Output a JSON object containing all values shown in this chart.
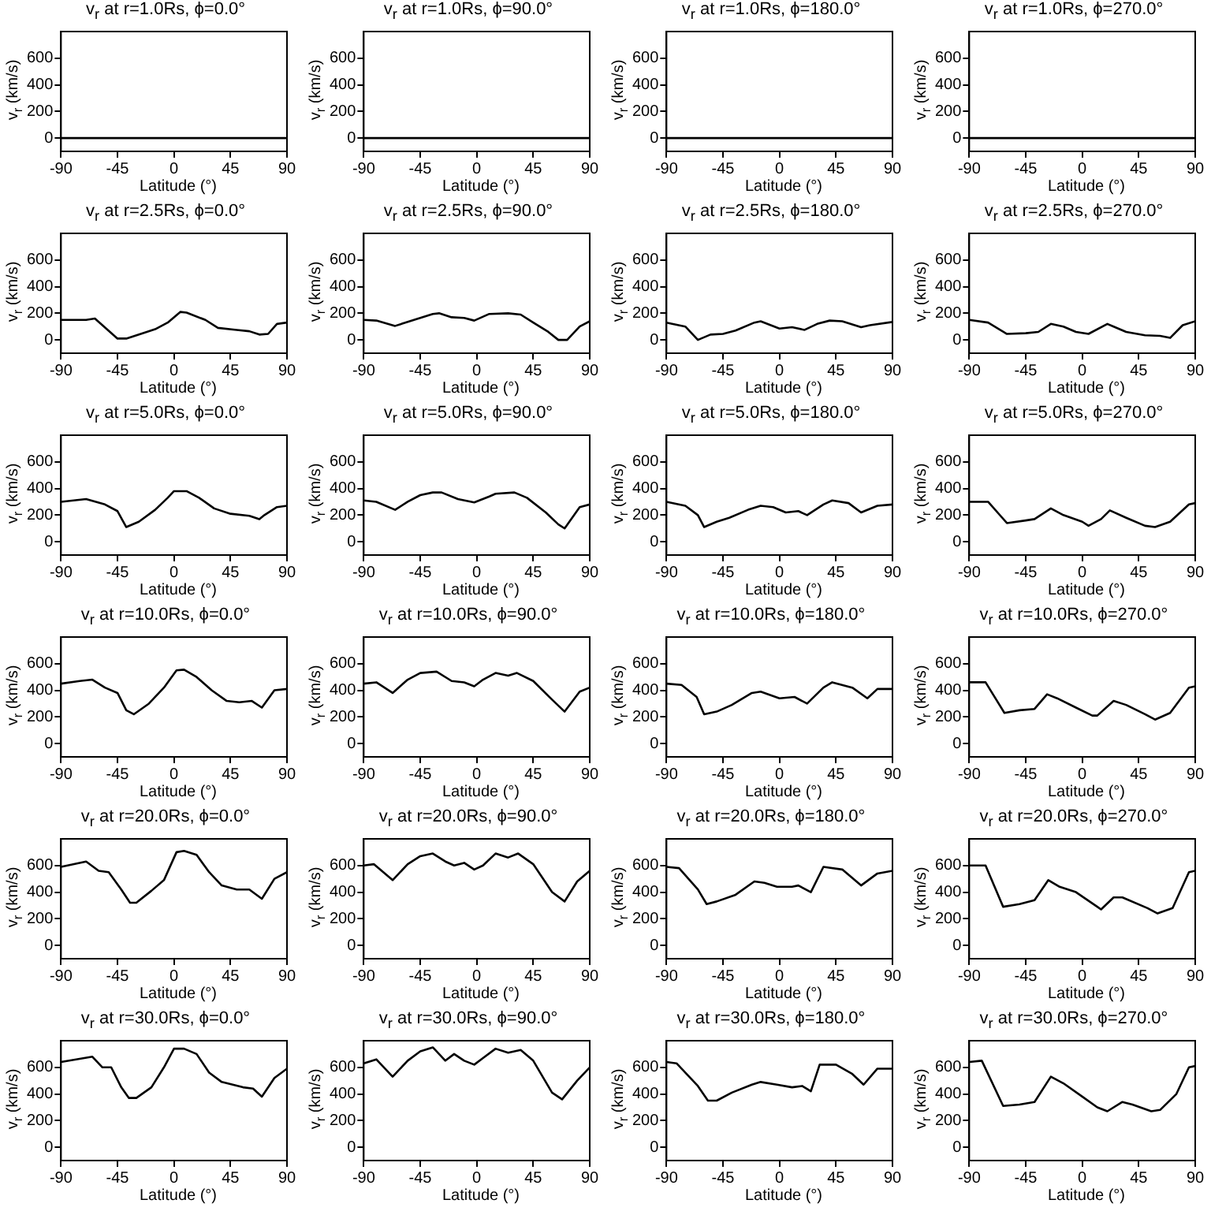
{
  "chart_data": [
    {
      "type": "line",
      "title": "v$_{r}$ at r=1.0Rs, ϕ=0.0°",
      "xlabel": "Latitude (°)",
      "ylabel": "v$_{r}$ (km/s)",
      "xlim": [
        -90,
        90
      ],
      "xticks": [
        -90,
        -45,
        0,
        45,
        90
      ],
      "ylim": [
        -100,
        800
      ],
      "yticks": [
        0,
        200,
        400,
        600
      ],
      "series": [
        {
          "color": "#000000",
          "x": [
            -90,
            90
          ],
          "values": [
            0,
            0
          ]
        }
      ]
    },
    {
      "type": "line",
      "title": "v$_{r}$ at r=1.0Rs, ϕ=90.0°",
      "xlabel": "Latitude (°)",
      "ylabel": "v$_{r}$ (km/s)",
      "xlim": [
        -90,
        90
      ],
      "xticks": [
        -90,
        -45,
        0,
        45,
        90
      ],
      "ylim": [
        -100,
        800
      ],
      "yticks": [
        0,
        200,
        400,
        600
      ],
      "series": [
        {
          "color": "#000000",
          "x": [
            -90,
            90
          ],
          "values": [
            0,
            0
          ]
        }
      ]
    },
    {
      "type": "line",
      "title": "v$_{r}$ at r=1.0Rs, ϕ=180.0°",
      "xlabel": "Latitude (°)",
      "ylabel": "v$_{r}$ (km/s)",
      "xlim": [
        -90,
        90
      ],
      "xticks": [
        -90,
        -45,
        0,
        45,
        90
      ],
      "ylim": [
        -100,
        800
      ],
      "yticks": [
        0,
        200,
        400,
        600
      ],
      "series": [
        {
          "color": "#000000",
          "x": [
            -90,
            90
          ],
          "values": [
            0,
            0
          ]
        }
      ]
    },
    {
      "type": "line",
      "title": "v$_{r}$ at r=1.0Rs, ϕ=270.0°",
      "xlabel": "Latitude (°)",
      "ylabel": "v$_{r}$ (km/s)",
      "xlim": [
        -90,
        90
      ],
      "xticks": [
        -90,
        -45,
        0,
        45,
        90
      ],
      "ylim": [
        -100,
        800
      ],
      "yticks": [
        0,
        200,
        400,
        600
      ],
      "series": [
        {
          "color": "#000000",
          "x": [
            -90,
            90
          ],
          "values": [
            0,
            0
          ]
        }
      ]
    },
    {
      "type": "line",
      "title": "v$_{r}$ at r=2.5Rs, ϕ=0.0°",
      "xlabel": "Latitude (°)",
      "ylabel": "v$_{r}$ (km/s)",
      "xlim": [
        -90,
        90
      ],
      "xticks": [
        -90,
        -45,
        0,
        45,
        90
      ],
      "ylim": [
        -100,
        800
      ],
      "yticks": [
        0,
        200,
        400,
        600
      ],
      "series": [
        {
          "color": "#000000",
          "x": [
            -90,
            -70,
            -63,
            -45,
            -38,
            -25,
            -15,
            -5,
            5,
            10,
            25,
            35,
            50,
            60,
            68,
            75,
            82,
            90
          ],
          "values": [
            150,
            150,
            160,
            10,
            10,
            50,
            80,
            130,
            210,
            205,
            150,
            90,
            75,
            65,
            40,
            45,
            120,
            130
          ]
        }
      ]
    },
    {
      "type": "line",
      "title": "v$_{r}$ at r=2.5Rs, ϕ=90.0°",
      "xlabel": "Latitude (°)",
      "ylabel": "v$_{r}$ (km/s)",
      "xlim": [
        -90,
        90
      ],
      "xticks": [
        -90,
        -45,
        0,
        45,
        90
      ],
      "ylim": [
        -100,
        800
      ],
      "yticks": [
        0,
        200,
        400,
        600
      ],
      "series": [
        {
          "color": "#000000",
          "x": [
            -90,
            -80,
            -65,
            -50,
            -35,
            -30,
            -20,
            -10,
            -2,
            10,
            25,
            35,
            45,
            57,
            65,
            72,
            82,
            90
          ],
          "values": [
            150,
            145,
            105,
            150,
            195,
            200,
            170,
            165,
            145,
            195,
            200,
            190,
            130,
            60,
            0,
            0,
            100,
            140
          ]
        }
      ]
    },
    {
      "type": "line",
      "title": "v$_{r}$ at r=2.5Rs, ϕ=180.0°",
      "xlabel": "Latitude (°)",
      "ylabel": "v$_{r}$ (km/s)",
      "xlim": [
        -90,
        90
      ],
      "xticks": [
        -90,
        -45,
        0,
        45,
        90
      ],
      "ylim": [
        -100,
        800
      ],
      "yticks": [
        0,
        200,
        400,
        600
      ],
      "series": [
        {
          "color": "#000000",
          "x": [
            -90,
            -75,
            -65,
            -55,
            -45,
            -35,
            -20,
            -15,
            0,
            10,
            20,
            30,
            40,
            50,
            65,
            72,
            90
          ],
          "values": [
            130,
            100,
            0,
            40,
            45,
            70,
            130,
            140,
            85,
            95,
            75,
            120,
            145,
            140,
            95,
            110,
            135
          ]
        }
      ]
    },
    {
      "type": "line",
      "title": "v$_{r}$ at r=2.5Rs, ϕ=270.0°",
      "xlabel": "Latitude (°)",
      "ylabel": "v$_{r}$ (km/s)",
      "xlim": [
        -90,
        90
      ],
      "xticks": [
        -90,
        -45,
        0,
        45,
        90
      ],
      "ylim": [
        -100,
        800
      ],
      "yticks": [
        0,
        200,
        400,
        600
      ],
      "series": [
        {
          "color": "#000000",
          "x": [
            -90,
            -75,
            -60,
            -45,
            -35,
            -25,
            -15,
            -5,
            5,
            20,
            25,
            35,
            50,
            62,
            70,
            80,
            90
          ],
          "values": [
            150,
            130,
            45,
            50,
            60,
            120,
            100,
            60,
            45,
            120,
            100,
            60,
            35,
            30,
            15,
            110,
            140
          ]
        }
      ]
    },
    {
      "type": "line",
      "title": "v$_{r}$ at r=5.0Rs, ϕ=0.0°",
      "xlabel": "Latitude (°)",
      "ylabel": "v$_{r}$ (km/s)",
      "xlim": [
        -90,
        90
      ],
      "xticks": [
        -90,
        -45,
        0,
        45,
        90
      ],
      "ylim": [
        -100,
        800
      ],
      "yticks": [
        0,
        200,
        400,
        600
      ],
      "series": [
        {
          "color": "#000000",
          "x": [
            -90,
            -70,
            -55,
            -45,
            -38,
            -28,
            -15,
            -5,
            0,
            10,
            20,
            32,
            45,
            60,
            68,
            72,
            82,
            90
          ],
          "values": [
            300,
            320,
            280,
            230,
            110,
            150,
            240,
            330,
            380,
            380,
            330,
            250,
            210,
            195,
            170,
            200,
            260,
            270
          ]
        }
      ]
    },
    {
      "type": "line",
      "title": "v$_{r}$ at r=5.0Rs, ϕ=90.0°",
      "xlabel": "Latitude (°)",
      "ylabel": "v$_{r}$ (km/s)",
      "xlim": [
        -90,
        90
      ],
      "xticks": [
        -90,
        -45,
        0,
        45,
        90
      ],
      "ylim": [
        -100,
        800
      ],
      "yticks": [
        0,
        200,
        400,
        600
      ],
      "series": [
        {
          "color": "#000000",
          "x": [
            -90,
            -80,
            -65,
            -55,
            -45,
            -35,
            -28,
            -15,
            -2,
            10,
            15,
            30,
            40,
            55,
            65,
            70,
            82,
            90
          ],
          "values": [
            310,
            300,
            240,
            300,
            350,
            370,
            370,
            320,
            295,
            340,
            360,
            370,
            330,
            220,
            130,
            100,
            260,
            280
          ]
        }
      ]
    },
    {
      "type": "line",
      "title": "v$_{r}$ at r=5.0Rs, ϕ=180.0°",
      "xlabel": "Latitude (°)",
      "ylabel": "v$_{r}$ (km/s)",
      "xlim": [
        -90,
        90
      ],
      "xticks": [
        -90,
        -45,
        0,
        45,
        90
      ],
      "ylim": [
        -100,
        800
      ],
      "yticks": [
        0,
        200,
        400,
        600
      ],
      "series": [
        {
          "color": "#000000",
          "x": [
            -90,
            -75,
            -65,
            -60,
            -50,
            -40,
            -25,
            -15,
            -5,
            5,
            15,
            22,
            35,
            42,
            55,
            65,
            78,
            90
          ],
          "values": [
            300,
            270,
            200,
            110,
            150,
            180,
            240,
            270,
            260,
            220,
            230,
            200,
            280,
            310,
            290,
            220,
            270,
            280
          ]
        }
      ]
    },
    {
      "type": "line",
      "title": "v$_{r}$ at r=5.0Rs, ϕ=270.0°",
      "xlabel": "Latitude (°)",
      "ylabel": "v$_{r}$ (km/s)",
      "xlim": [
        -90,
        90
      ],
      "xticks": [
        -90,
        -45,
        0,
        45,
        90
      ],
      "ylim": [
        -100,
        800
      ],
      "yticks": [
        0,
        200,
        400,
        600
      ],
      "series": [
        {
          "color": "#000000",
          "x": [
            -90,
            -75,
            -60,
            -45,
            -38,
            -25,
            -15,
            0,
            5,
            15,
            22,
            35,
            50,
            58,
            70,
            85,
            90
          ],
          "values": [
            300,
            300,
            140,
            160,
            170,
            250,
            200,
            150,
            120,
            170,
            235,
            180,
            120,
            110,
            150,
            280,
            290
          ]
        }
      ]
    },
    {
      "type": "line",
      "title": "v$_{r}$ at r=10.0Rs, ϕ=0.0°",
      "xlabel": "Latitude (°)",
      "ylabel": "v$_{r}$ (km/s)",
      "xlim": [
        -90,
        90
      ],
      "xticks": [
        -90,
        -45,
        0,
        45,
        90
      ],
      "ylim": [
        -100,
        800
      ],
      "yticks": [
        0,
        200,
        400,
        600
      ],
      "series": [
        {
          "color": "#000000",
          "x": [
            -90,
            -75,
            -65,
            -55,
            -45,
            -38,
            -32,
            -20,
            -8,
            2,
            8,
            18,
            30,
            42,
            52,
            62,
            70,
            80,
            90
          ],
          "values": [
            450,
            470,
            480,
            420,
            380,
            250,
            220,
            300,
            420,
            550,
            555,
            500,
            400,
            320,
            310,
            320,
            270,
            400,
            410
          ]
        }
      ]
    },
    {
      "type": "line",
      "title": "v$_{r}$ at r=10.0Rs, ϕ=90.0°",
      "xlabel": "Latitude (°)",
      "ylabel": "v$_{r}$ (km/s)",
      "xlim": [
        -90,
        90
      ],
      "xticks": [
        -90,
        -45,
        0,
        45,
        90
      ],
      "ylim": [
        -100,
        800
      ],
      "yticks": [
        0,
        200,
        400,
        600
      ],
      "series": [
        {
          "color": "#000000",
          "x": [
            -90,
            -80,
            -67,
            -55,
            -45,
            -32,
            -20,
            -10,
            -2,
            5,
            15,
            25,
            32,
            45,
            60,
            70,
            82,
            90
          ],
          "values": [
            450,
            460,
            380,
            480,
            530,
            540,
            470,
            460,
            430,
            480,
            530,
            510,
            530,
            470,
            330,
            240,
            390,
            420
          ]
        }
      ]
    },
    {
      "type": "line",
      "title": "v$_{r}$ at r=10.0Rs, ϕ=180.0°",
      "xlabel": "Latitude (°)",
      "ylabel": "v$_{r}$ (km/s)",
      "xlim": [
        -90,
        90
      ],
      "xticks": [
        -90,
        -45,
        0,
        45,
        90
      ],
      "ylim": [
        -100,
        800
      ],
      "yticks": [
        0,
        200,
        400,
        600
      ],
      "series": [
        {
          "color": "#000000",
          "x": [
            -90,
            -78,
            -66,
            -60,
            -50,
            -38,
            -22,
            -15,
            0,
            12,
            22,
            35,
            42,
            58,
            70,
            78,
            90
          ],
          "values": [
            450,
            440,
            350,
            220,
            240,
            290,
            380,
            390,
            340,
            350,
            300,
            420,
            460,
            420,
            340,
            410,
            410
          ]
        }
      ]
    },
    {
      "type": "line",
      "title": "v$_{r}$ at r=10.0Rs, ϕ=270.0°",
      "xlabel": "Latitude (°)",
      "ylabel": "v$_{r}$ (km/s)",
      "xlim": [
        -90,
        90
      ],
      "xticks": [
        -90,
        -45,
        0,
        45,
        90
      ],
      "ylim": [
        -100,
        800
      ],
      "yticks": [
        0,
        200,
        400,
        600
      ],
      "series": [
        {
          "color": "#000000",
          "x": [
            -90,
            -77,
            -62,
            -50,
            -38,
            -28,
            -20,
            -5,
            8,
            12,
            25,
            35,
            50,
            58,
            70,
            85,
            90
          ],
          "values": [
            460,
            460,
            230,
            250,
            260,
            370,
            340,
            270,
            210,
            210,
            320,
            290,
            220,
            180,
            230,
            420,
            430
          ]
        }
      ]
    },
    {
      "type": "line",
      "title": "v$_{r}$ at r=20.0Rs, ϕ=0.0°",
      "xlabel": "Latitude (°)",
      "ylabel": "v$_{r}$ (km/s)",
      "xlim": [
        -90,
        90
      ],
      "xticks": [
        -90,
        -45,
        0,
        45,
        90
      ],
      "ylim": [
        -100,
        800
      ],
      "yticks": [
        0,
        200,
        400,
        600
      ],
      "series": [
        {
          "color": "#000000",
          "x": [
            -90,
            -70,
            -60,
            -52,
            -42,
            -35,
            -30,
            -18,
            -8,
            2,
            8,
            18,
            28,
            38,
            50,
            60,
            70,
            80,
            90
          ],
          "values": [
            590,
            630,
            560,
            550,
            420,
            320,
            320,
            410,
            490,
            700,
            710,
            680,
            550,
            450,
            420,
            420,
            350,
            500,
            550
          ]
        }
      ]
    },
    {
      "type": "line",
      "title": "v$_{r}$ at r=20.0Rs, ϕ=90.0°",
      "xlabel": "Latitude (°)",
      "ylabel": "v$_{r}$ (km/s)",
      "xlim": [
        -90,
        90
      ],
      "xticks": [
        -90,
        -45,
        0,
        45,
        90
      ],
      "ylim": [
        -100,
        800
      ],
      "yticks": [
        0,
        200,
        400,
        600
      ],
      "series": [
        {
          "color": "#000000",
          "x": [
            -90,
            -82,
            -67,
            -55,
            -45,
            -35,
            -25,
            -18,
            -10,
            -2,
            5,
            15,
            25,
            33,
            45,
            60,
            70,
            80,
            90
          ],
          "values": [
            600,
            610,
            490,
            610,
            670,
            690,
            630,
            600,
            620,
            570,
            600,
            690,
            660,
            690,
            610,
            400,
            330,
            480,
            560
          ]
        }
      ]
    },
    {
      "type": "line",
      "title": "v$_{r}$ at r=20.0Rs, ϕ=180.0°",
      "xlabel": "Latitude (°)",
      "ylabel": "v$_{r}$ (km/s)",
      "xlim": [
        -90,
        90
      ],
      "xticks": [
        -90,
        -45,
        0,
        45,
        90
      ],
      "ylim": [
        -100,
        800
      ],
      "yticks": [
        0,
        200,
        400,
        600
      ],
      "series": [
        {
          "color": "#000000",
          "x": [
            -90,
            -80,
            -65,
            -58,
            -50,
            -35,
            -20,
            -12,
            -2,
            10,
            15,
            25,
            35,
            50,
            65,
            78,
            90
          ],
          "values": [
            590,
            580,
            420,
            310,
            330,
            380,
            480,
            470,
            440,
            440,
            450,
            400,
            590,
            570,
            450,
            540,
            560
          ]
        }
      ]
    },
    {
      "type": "line",
      "title": "v$_{r}$ at r=20.0Rs, ϕ=270.0°",
      "xlabel": "Latitude (°)",
      "ylabel": "v$_{r}$ (km/s)",
      "xlim": [
        -90,
        90
      ],
      "xticks": [
        -90,
        -45,
        0,
        45,
        90
      ],
      "ylim": [
        -100,
        800
      ],
      "yticks": [
        0,
        200,
        400,
        600
      ],
      "series": [
        {
          "color": "#000000",
          "x": [
            -90,
            -77,
            -63,
            -50,
            -38,
            -27,
            -18,
            -5,
            12,
            15,
            25,
            32,
            52,
            60,
            72,
            85,
            90
          ],
          "values": [
            600,
            600,
            290,
            310,
            340,
            490,
            440,
            400,
            290,
            270,
            360,
            360,
            280,
            240,
            280,
            550,
            560
          ]
        }
      ]
    },
    {
      "type": "line",
      "title": "v$_{r}$ at r=30.0Rs, ϕ=0.0°",
      "xlabel": "Latitude (°)",
      "ylabel": "v$_{r}$ (km/s)",
      "xlim": [
        -90,
        90
      ],
      "xticks": [
        -90,
        -45,
        0,
        45,
        90
      ],
      "ylim": [
        -100,
        800
      ],
      "yticks": [
        0,
        200,
        400,
        600
      ],
      "series": [
        {
          "color": "#000000",
          "x": [
            -90,
            -65,
            -57,
            -50,
            -42,
            -36,
            -30,
            -18,
            -8,
            0,
            8,
            18,
            28,
            38,
            55,
            63,
            70,
            80,
            90
          ],
          "values": [
            640,
            680,
            600,
            600,
            450,
            370,
            370,
            450,
            600,
            740,
            740,
            700,
            560,
            490,
            450,
            440,
            380,
            520,
            590
          ]
        }
      ]
    },
    {
      "type": "line",
      "title": "v$_{r}$ at r=30.0Rs, ϕ=90.0°",
      "xlabel": "Latitude (°)",
      "ylabel": "v$_{r}$ (km/s)",
      "xlim": [
        -90,
        90
      ],
      "xticks": [
        -90,
        -45,
        0,
        45,
        90
      ],
      "ylim": [
        -100,
        800
      ],
      "yticks": [
        0,
        200,
        400,
        600
      ],
      "series": [
        {
          "color": "#000000",
          "x": [
            -90,
            -80,
            -67,
            -55,
            -45,
            -35,
            -25,
            -18,
            -10,
            -2,
            5,
            15,
            25,
            35,
            45,
            60,
            68,
            80,
            90
          ],
          "values": [
            630,
            660,
            530,
            650,
            720,
            750,
            650,
            700,
            650,
            620,
            670,
            740,
            710,
            730,
            650,
            410,
            360,
            500,
            600
          ]
        }
      ]
    },
    {
      "type": "line",
      "title": "v$_{r}$ at r=30.0Rs, ϕ=180.0°",
      "xlabel": "Latitude (°)",
      "ylabel": "v$_{r}$ (km/s)",
      "xlim": [
        -90,
        90
      ],
      "xticks": [
        -90,
        -45,
        0,
        45,
        90
      ],
      "ylim": [
        -100,
        800
      ],
      "yticks": [
        0,
        200,
        400,
        600
      ],
      "series": [
        {
          "color": "#000000",
          "x": [
            -90,
            -82,
            -65,
            -57,
            -50,
            -38,
            -22,
            -15,
            -2,
            10,
            18,
            25,
            32,
            45,
            58,
            67,
            78,
            90
          ],
          "values": [
            640,
            630,
            460,
            350,
            350,
            410,
            470,
            490,
            470,
            450,
            460,
            420,
            620,
            620,
            550,
            470,
            590,
            590
          ]
        }
      ]
    },
    {
      "type": "line",
      "title": "v$_{r}$ at r=30.0Rs, ϕ=270.0°",
      "xlabel": "Latitude (°)",
      "ylabel": "v$_{r}$ (km/s)",
      "xlim": [
        -90,
        90
      ],
      "xticks": [
        -90,
        -45,
        0,
        45,
        90
      ],
      "ylim": [
        -100,
        800
      ],
      "yticks": [
        0,
        200,
        400,
        600
      ],
      "series": [
        {
          "color": "#000000",
          "x": [
            -90,
            -80,
            -63,
            -50,
            -38,
            -25,
            -15,
            0,
            12,
            20,
            32,
            40,
            55,
            62,
            75,
            85,
            90
          ],
          "values": [
            640,
            650,
            310,
            320,
            340,
            530,
            480,
            380,
            300,
            270,
            340,
            320,
            270,
            280,
            400,
            600,
            610
          ]
        }
      ]
    }
  ]
}
